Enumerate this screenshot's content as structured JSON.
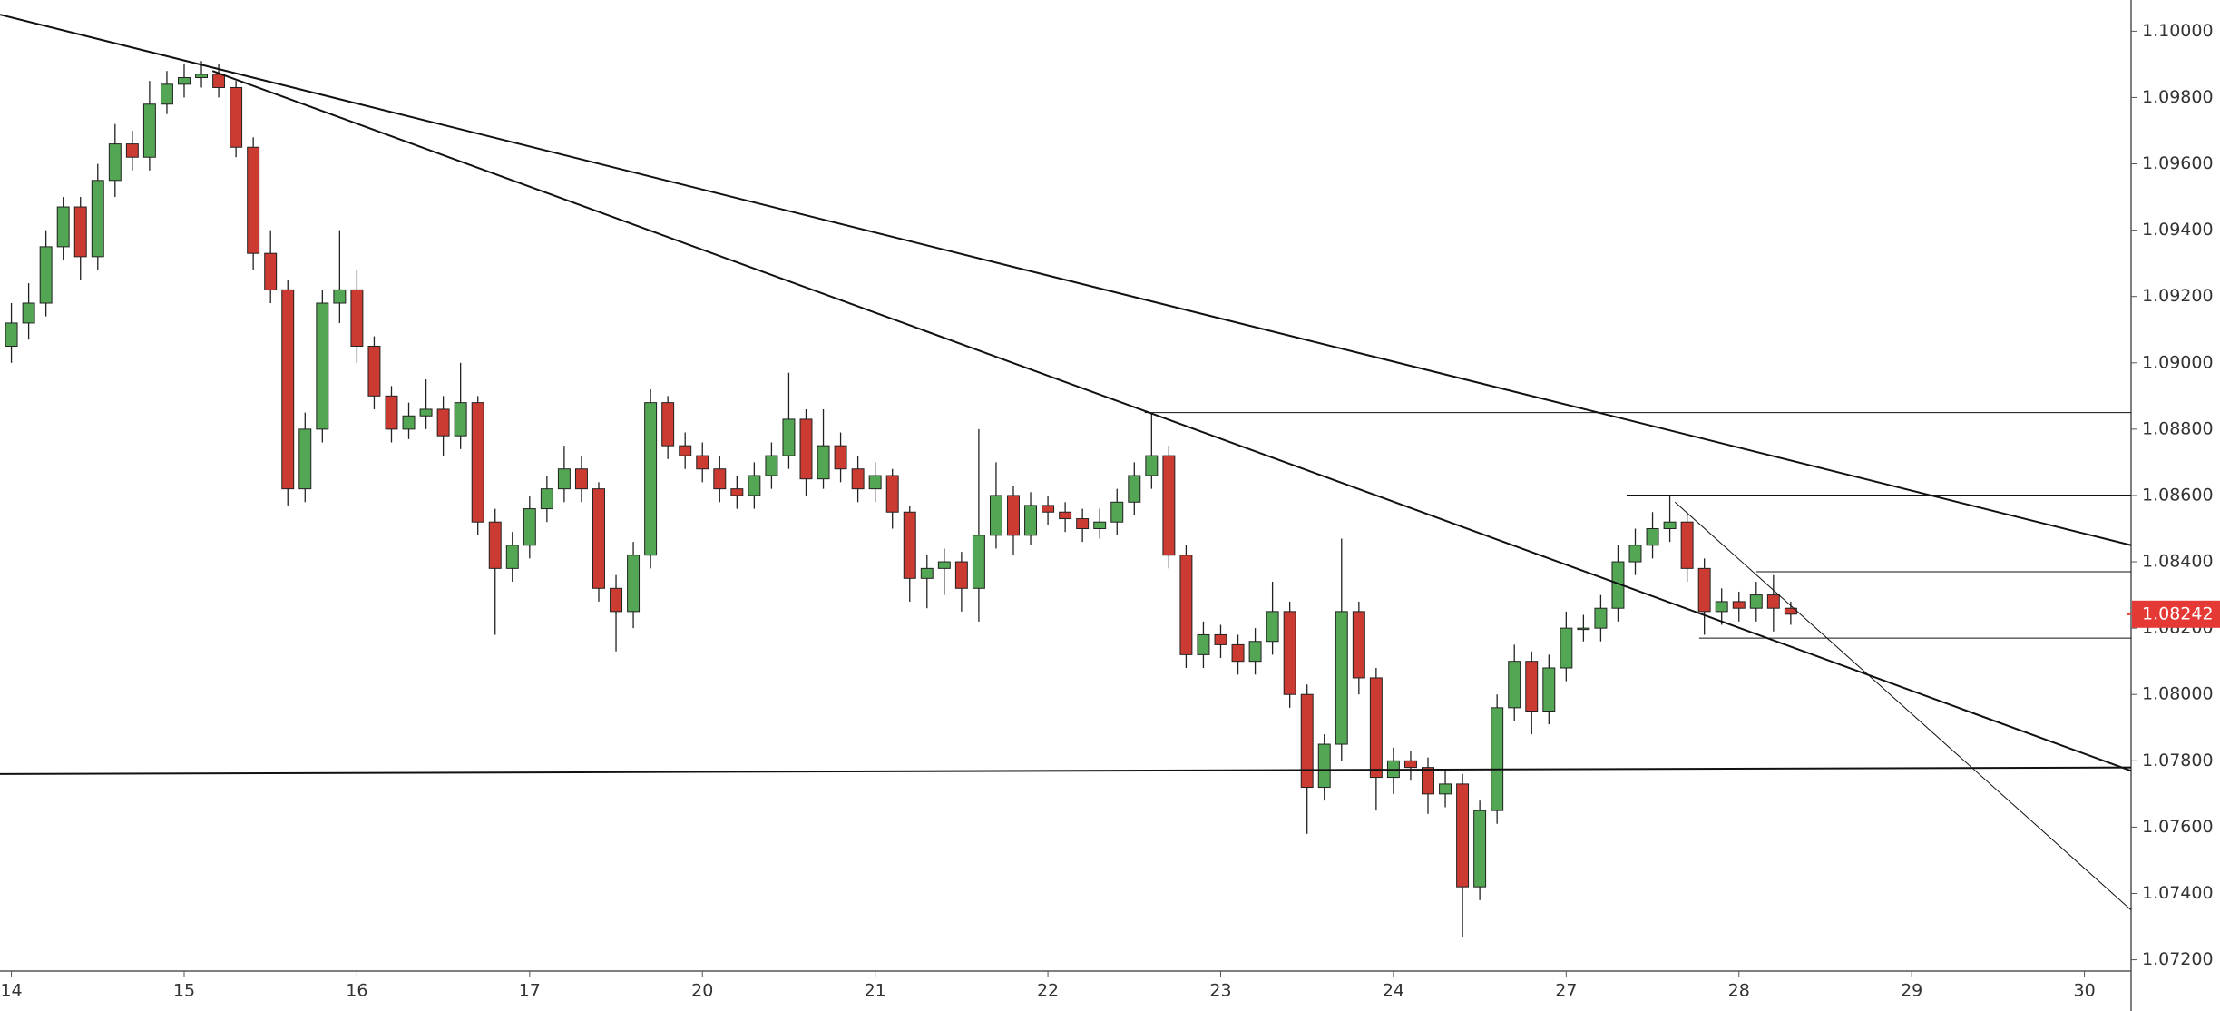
{
  "chart_data": {
    "type": "candlestick",
    "up_color": "#53a653",
    "down_color": "#cc3b32",
    "line_color": "#111111",
    "last_price": 1.08242,
    "last_price_color": "#e53935",
    "xlim": [
      -0.066,
      12.27
    ],
    "ylim": [
      1.07166,
      1.10094
    ],
    "xticks": [
      {
        "value": 0,
        "label": "14"
      },
      {
        "value": 1,
        "label": "15"
      },
      {
        "value": 2,
        "label": "16"
      },
      {
        "value": 3,
        "label": "17"
      },
      {
        "value": 4,
        "label": "20"
      },
      {
        "value": 5,
        "label": "21"
      },
      {
        "value": 6,
        "label": "22"
      },
      {
        "value": 7,
        "label": "23"
      },
      {
        "value": 8,
        "label": "24"
      },
      {
        "value": 9,
        "label": "27"
      },
      {
        "value": 10,
        "label": "28"
      },
      {
        "value": 11,
        "label": "29"
      },
      {
        "value": 12,
        "label": "30"
      }
    ],
    "yticks": [
      {
        "value": 1.072,
        "label": "1.07200"
      },
      {
        "value": 1.074,
        "label": "1.07400"
      },
      {
        "value": 1.076,
        "label": "1.07600"
      },
      {
        "value": 1.078,
        "label": "1.07800"
      },
      {
        "value": 1.08,
        "label": "1.08000"
      },
      {
        "value": 1.082,
        "label": "1.08200"
      },
      {
        "value": 1.084,
        "label": "1.08400"
      },
      {
        "value": 1.086,
        "label": "1.08600"
      },
      {
        "value": 1.088,
        "label": "1.08800"
      },
      {
        "value": 1.09,
        "label": "1.09000"
      },
      {
        "value": 1.092,
        "label": "1.09200"
      },
      {
        "value": 1.094,
        "label": "1.09400"
      },
      {
        "value": 1.096,
        "label": "1.09600"
      },
      {
        "value": 1.098,
        "label": "1.09800"
      },
      {
        "value": 1.1,
        "label": "1.10000"
      }
    ],
    "x": [
      0,
      0.1,
      0.2,
      0.3,
      0.4,
      0.5,
      0.6,
      0.7,
      0.8,
      0.9,
      1,
      1.1,
      1.2,
      1.3,
      1.4,
      1.5,
      1.6,
      1.7,
      1.8,
      1.9,
      2,
      2.1,
      2.2,
      2.3,
      2.4,
      2.5,
      2.6,
      2.7,
      2.8,
      2.9,
      3,
      3.1,
      3.2,
      3.3,
      3.4,
      3.5,
      3.6,
      3.7,
      3.8,
      3.9,
      4,
      4.1,
      4.2,
      4.3,
      4.4,
      4.5,
      4.6,
      4.7,
      4.8,
      4.9,
      5,
      5.1,
      5.2,
      5.3,
      5.4,
      5.5,
      5.6,
      5.7,
      5.8,
      5.9,
      6,
      6.1,
      6.2,
      6.3,
      6.4,
      6.5,
      6.6,
      6.7,
      6.8,
      6.9,
      7,
      7.1,
      7.2,
      7.3,
      7.4,
      7.5,
      7.6,
      7.7,
      7.8,
      7.9,
      8,
      8.1,
      8.2,
      8.3,
      8.4,
      8.5,
      8.6,
      8.7,
      8.8,
      8.9,
      9,
      9.1,
      9.2,
      9.3,
      9.4,
      9.5,
      9.6,
      9.7,
      9.8,
      9.9,
      10,
      10.1,
      10.2,
      10.3
    ],
    "open": [
      1.0905,
      1.0912,
      1.0918,
      1.0935,
      1.0947,
      1.0932,
      1.0955,
      1.0966,
      1.0962,
      1.0978,
      1.0984,
      1.0986,
      1.0987,
      1.0983,
      1.0965,
      1.0933,
      1.0922,
      1.0862,
      1.088,
      1.0918,
      1.0922,
      1.0905,
      1.089,
      1.088,
      1.0884,
      1.0886,
      1.0878,
      1.0888,
      1.0852,
      1.0838,
      1.0845,
      1.0856,
      1.0862,
      1.0868,
      1.0862,
      1.0832,
      1.0825,
      1.0842,
      1.0888,
      1.0875,
      1.0872,
      1.0868,
      1.0862,
      1.086,
      1.0866,
      1.0872,
      1.0883,
      1.0865,
      1.0875,
      1.0868,
      1.0862,
      1.0866,
      1.0855,
      1.0835,
      1.0838,
      1.084,
      1.0832,
      1.0848,
      1.086,
      1.0848,
      1.0857,
      1.0855,
      1.0853,
      1.085,
      1.0852,
      1.0858,
      1.0866,
      1.0872,
      1.0842,
      1.0812,
      1.0818,
      1.0815,
      1.081,
      1.0816,
      1.0825,
      1.08,
      1.0772,
      1.0785,
      1.0825,
      1.0805,
      1.0775,
      1.078,
      1.0778,
      1.077,
      1.0773,
      1.0742,
      1.0765,
      1.0796,
      1.081,
      1.0795,
      1.0808,
      1.082,
      1.082,
      1.0826,
      1.084,
      1.0845,
      1.085,
      1.0852,
      1.0838,
      1.0825,
      1.0828,
      1.0826,
      1.083,
      1.0826
    ],
    "high": [
      1.0918,
      1.0924,
      1.094,
      1.095,
      1.095,
      1.096,
      1.0972,
      1.097,
      1.0985,
      1.0988,
      1.099,
      1.0991,
      1.099,
      1.0985,
      1.0968,
      1.094,
      1.0925,
      1.0885,
      1.0922,
      1.094,
      1.0928,
      1.0908,
      1.0893,
      1.0888,
      1.0895,
      1.089,
      1.09,
      1.089,
      1.0856,
      1.0849,
      1.086,
      1.0866,
      1.0875,
      1.0872,
      1.0864,
      1.0836,
      1.0846,
      1.0892,
      1.089,
      1.0879,
      1.0876,
      1.0872,
      1.0866,
      1.087,
      1.0876,
      1.0897,
      1.0886,
      1.0886,
      1.0879,
      1.0872,
      1.087,
      1.0868,
      1.0857,
      1.0842,
      1.0844,
      1.0843,
      1.088,
      1.087,
      1.0863,
      1.0861,
      1.086,
      1.0858,
      1.0856,
      1.0856,
      1.0862,
      1.087,
      1.0885,
      1.0875,
      1.0845,
      1.0822,
      1.0821,
      1.0818,
      1.082,
      1.0834,
      1.0828,
      1.0803,
      1.0788,
      1.0847,
      1.0828,
      1.0808,
      1.0784,
      1.0783,
      1.0781,
      1.0777,
      1.0776,
      1.0768,
      1.08,
      1.0815,
      1.0813,
      1.0812,
      1.0825,
      1.0824,
      1.083,
      1.0845,
      1.085,
      1.0855,
      1.086,
      1.0855,
      1.0841,
      1.0832,
      1.0831,
      1.0834,
      1.0836,
      1.0828
    ],
    "low": [
      1.09,
      1.0907,
      1.0914,
      1.0931,
      1.0925,
      1.0928,
      1.095,
      1.0958,
      1.0958,
      1.0975,
      1.098,
      1.0983,
      1.098,
      1.0962,
      1.0928,
      1.0918,
      1.0857,
      1.0858,
      1.0876,
      1.0912,
      1.09,
      1.0886,
      1.0876,
      1.0877,
      1.088,
      1.0872,
      1.0874,
      1.0848,
      1.0818,
      1.0834,
      1.0841,
      1.0852,
      1.0858,
      1.0858,
      1.0828,
      1.0813,
      1.082,
      1.0838,
      1.0871,
      1.0868,
      1.0864,
      1.0858,
      1.0856,
      1.0856,
      1.0862,
      1.0868,
      1.086,
      1.0862,
      1.0864,
      1.0858,
      1.0858,
      1.085,
      1.0828,
      1.0826,
      1.083,
      1.0825,
      1.0822,
      1.0844,
      1.0842,
      1.0845,
      1.0851,
      1.0849,
      1.0846,
      1.0847,
      1.0848,
      1.0854,
      1.0862,
      1.0838,
      1.0808,
      1.0808,
      1.0811,
      1.0806,
      1.0806,
      1.0812,
      1.0796,
      1.0758,
      1.0768,
      1.078,
      1.08,
      1.0765,
      1.077,
      1.0774,
      1.0764,
      1.0766,
      1.0727,
      1.0738,
      1.0761,
      1.0792,
      1.0788,
      1.0791,
      1.0804,
      1.0816,
      1.0816,
      1.0822,
      1.0836,
      1.0841,
      1.0846,
      1.0834,
      1.0818,
      1.0821,
      1.0822,
      1.0822,
      1.0819,
      1.0821
    ],
    "close": [
      1.0912,
      1.0918,
      1.0935,
      1.0947,
      1.0932,
      1.0955,
      1.0966,
      1.0962,
      1.0978,
      1.0984,
      1.0986,
      1.0987,
      1.0983,
      1.0965,
      1.0933,
      1.0922,
      1.0862,
      1.088,
      1.0918,
      1.0922,
      1.0905,
      1.089,
      1.088,
      1.0884,
      1.0886,
      1.0878,
      1.0888,
      1.0852,
      1.0838,
      1.0845,
      1.0856,
      1.0862,
      1.0868,
      1.0862,
      1.0832,
      1.0825,
      1.0842,
      1.0888,
      1.0875,
      1.0872,
      1.0868,
      1.0862,
      1.086,
      1.0866,
      1.0872,
      1.0883,
      1.0865,
      1.0875,
      1.0868,
      1.0862,
      1.0866,
      1.0855,
      1.0835,
      1.0838,
      1.084,
      1.0832,
      1.0848,
      1.086,
      1.0848,
      1.0857,
      1.0855,
      1.0853,
      1.085,
      1.0852,
      1.0858,
      1.0866,
      1.0872,
      1.0842,
      1.0812,
      1.0818,
      1.0815,
      1.081,
      1.0816,
      1.0825,
      1.08,
      1.0772,
      1.0785,
      1.0825,
      1.0805,
      1.0775,
      1.078,
      1.0778,
      1.077,
      1.0773,
      1.0742,
      1.0765,
      1.0796,
      1.081,
      1.0795,
      1.0808,
      1.082,
      1.082,
      1.0826,
      1.084,
      1.0845,
      1.085,
      1.0852,
      1.0838,
      1.0825,
      1.0828,
      1.0826,
      1.083,
      1.0826,
      1.08242
    ],
    "lines": [
      {
        "x": [
          -0.066,
          12.27
        ],
        "y": [
          1.1005,
          1.0845
        ],
        "width": 2
      },
      {
        "x": [
          1.164,
          12.27
        ],
        "y": [
          1.0988,
          1.0777
        ],
        "width": 2
      },
      {
        "x": [
          -0.066,
          12.27
        ],
        "y": [
          1.0776,
          1.0778
        ],
        "width": 2
      },
      {
        "x": [
          6.56,
          12.27
        ],
        "y": [
          1.0885,
          1.0885
        ],
        "width": 1
      },
      {
        "x": [
          9.35,
          12.27
        ],
        "y": [
          1.086,
          1.086
        ],
        "width": 2
      },
      {
        "x": [
          9.63,
          12.27
        ],
        "y": [
          1.0858,
          1.0735
        ],
        "width": 1
      },
      {
        "x": [
          10.1,
          12.27
        ],
        "y": [
          1.0837,
          1.0837
        ],
        "width": 1
      },
      {
        "x": [
          9.77,
          12.27
        ],
        "y": [
          1.0817,
          1.0817
        ],
        "width": 1
      }
    ]
  }
}
